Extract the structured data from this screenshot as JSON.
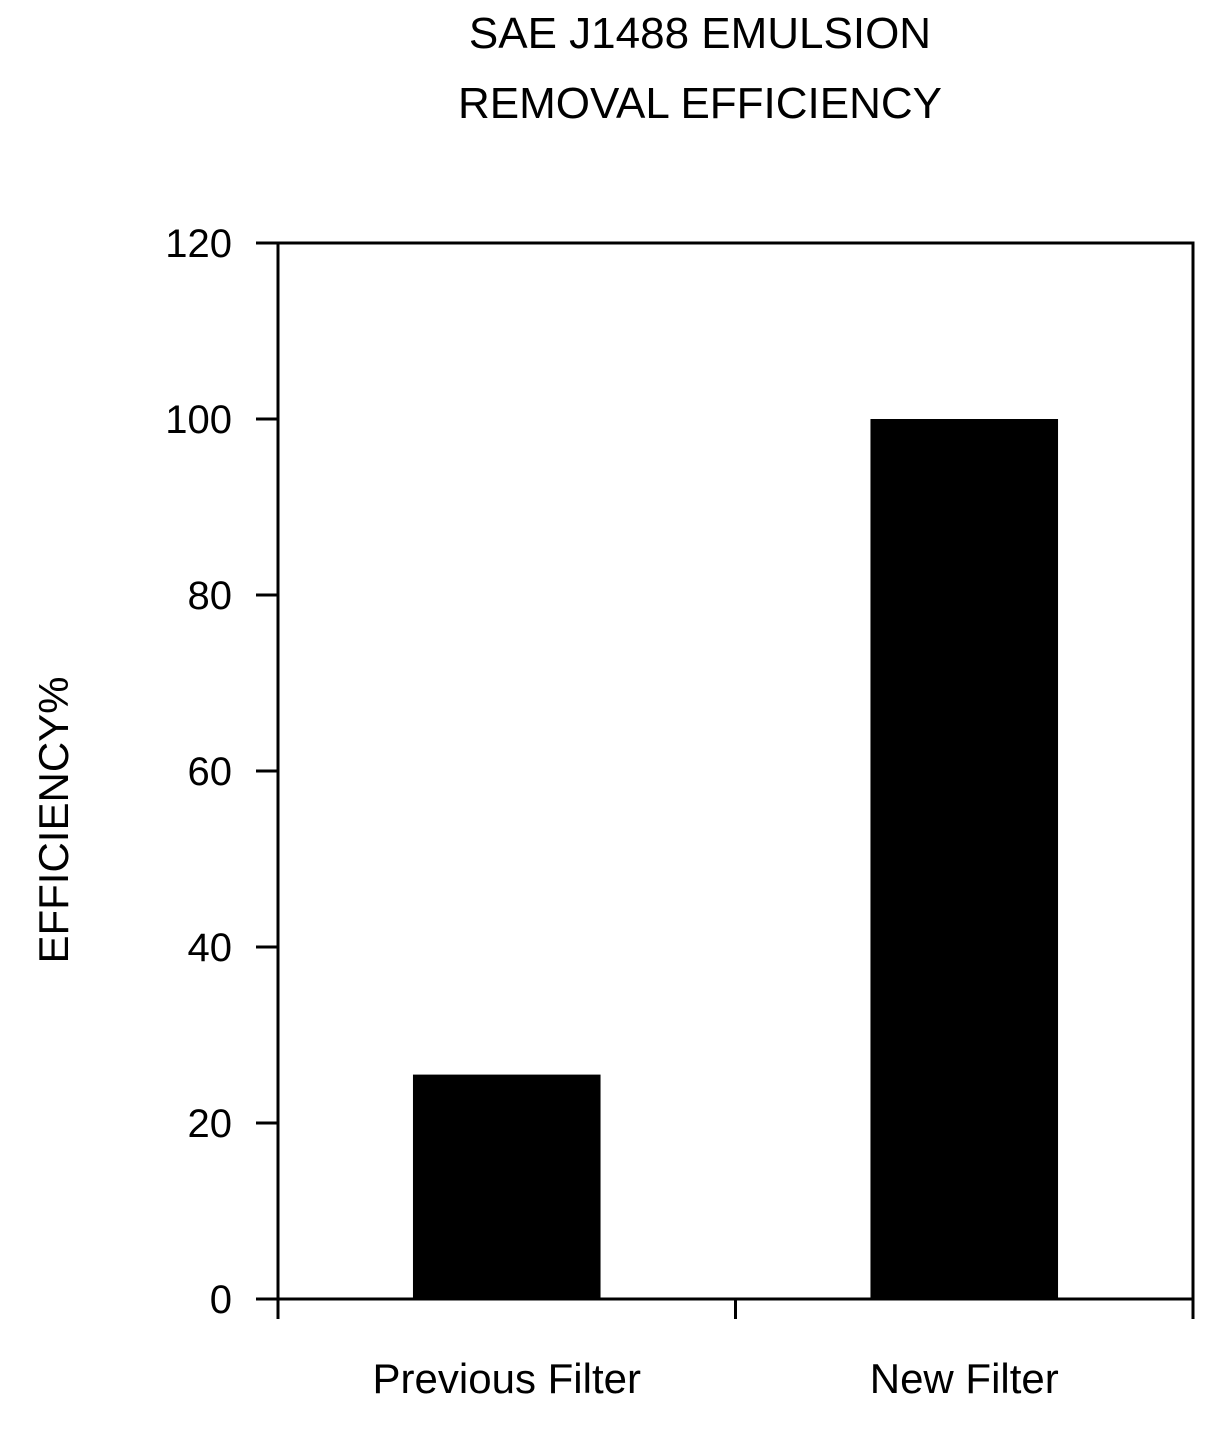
{
  "chart_data": {
    "type": "bar",
    "title": [
      "SAE J1488 EMULSION",
      "REMOVAL EFFICIENCY"
    ],
    "ylabel": "EFFICIENCY%",
    "xlabel": "",
    "categories": [
      "Previous Filter",
      "New Filter"
    ],
    "values": [
      25.5,
      100
    ],
    "ylim": [
      0,
      120
    ],
    "yticks": [
      0,
      20,
      40,
      60,
      80,
      100,
      120
    ],
    "grid": false,
    "bar_color": "#000000"
  }
}
